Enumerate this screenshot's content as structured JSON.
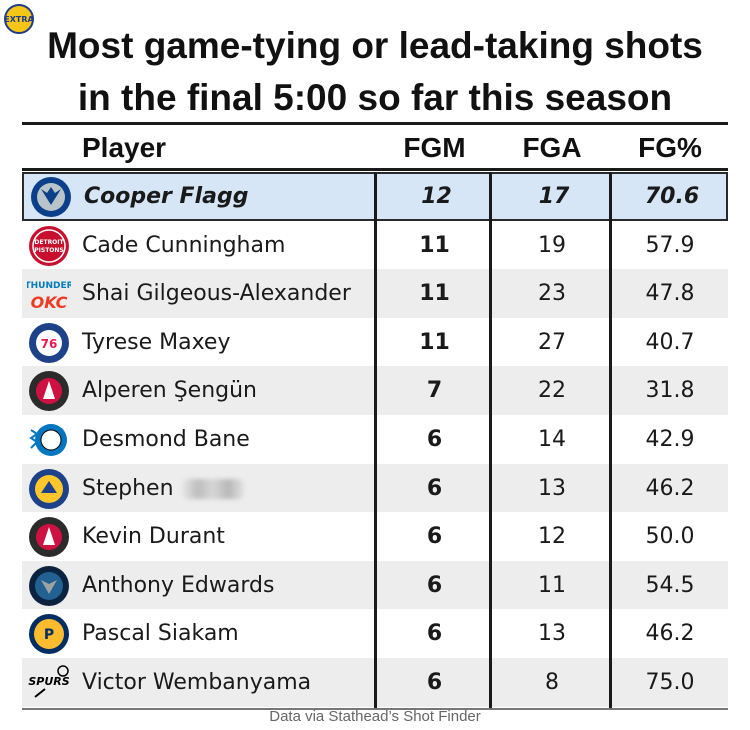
{
  "badge": "EXTRA",
  "title_lines": [
    "Most game-tying or lead-taking shots",
    "in the final 5:00 so far this season"
  ],
  "source": "Data via Stathead’s Shot Finder",
  "colors": {
    "highlight_row": "#d6e6f6",
    "alt_row": "#ededed",
    "rule": "#1a1a1a"
  },
  "chart_data": {
    "type": "table",
    "columns": [
      "Player",
      "FGM",
      "FGA",
      "FG%"
    ],
    "rows": [
      {
        "team_logo": "mavericks-logo",
        "player": "Cooper Flagg",
        "fgm": "12",
        "fga": "17",
        "fgp": "70.6",
        "highlighted": true
      },
      {
        "team_logo": "pistons-logo",
        "player": "Cade Cunningham",
        "fgm": "11",
        "fga": "19",
        "fgp": "57.9"
      },
      {
        "team_logo": "thunder-logo",
        "player": "Shai Gilgeous-Alexander",
        "fgm": "11",
        "fga": "23",
        "fgp": "47.8"
      },
      {
        "team_logo": "76ers-logo",
        "player": "Tyrese Maxey",
        "fgm": "11",
        "fga": "27",
        "fgp": "40.7"
      },
      {
        "team_logo": "rockets-logo",
        "player": "Alperen Şengün",
        "fgm": "7",
        "fga": "22",
        "fgp": "31.8"
      },
      {
        "team_logo": "magic-logo",
        "player": "Desmond Bane",
        "fgm": "6",
        "fga": "14",
        "fgp": "42.9"
      },
      {
        "team_logo": "warriors-logo",
        "player": "Stephen",
        "fgm": "6",
        "fga": "13",
        "fgp": "46.2",
        "name_obscured": true
      },
      {
        "team_logo": "rockets-logo",
        "player": "Kevin Durant",
        "fgm": "6",
        "fga": "12",
        "fgp": "50.0"
      },
      {
        "team_logo": "timberwolves-logo",
        "player": "Anthony Edwards",
        "fgm": "6",
        "fga": "11",
        "fgp": "54.5"
      },
      {
        "team_logo": "pacers-logo",
        "player": "Pascal Siakam",
        "fgm": "6",
        "fga": "13",
        "fgp": "46.2"
      },
      {
        "team_logo": "spurs-logo",
        "player": "Victor Wembanyama",
        "fgm": "6",
        "fga": "8",
        "fgp": "75.0"
      }
    ]
  }
}
